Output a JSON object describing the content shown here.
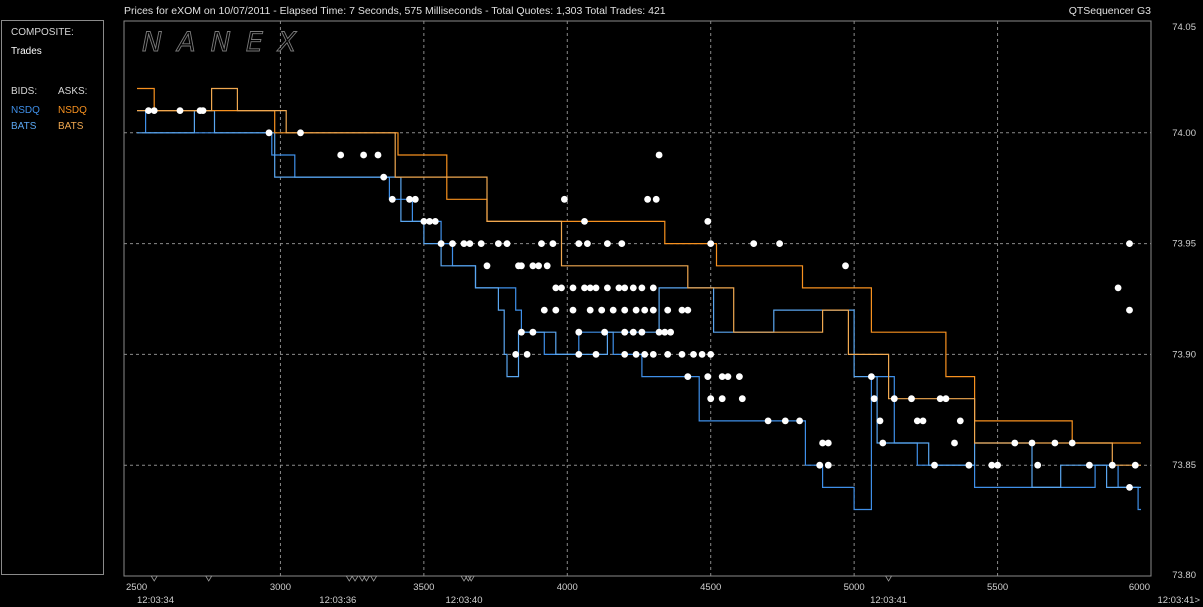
{
  "header": {
    "title": "Prices for  eXOM  on  10/07/2011  -  Elapsed Time: 7 Seconds, 575 Milliseconds  -  Total Quotes: 1,303  Total Trades: 421",
    "app_name": "QTSequencer G3"
  },
  "legend": {
    "composite_label": "COMPOSITE:",
    "trades_label": "Trades",
    "bids_label": "BIDS:",
    "asks_label": "ASKS:",
    "bid_nsdq": "NSDQ",
    "bid_bats": "BATS",
    "ask_nsdq": "NSDQ",
    "ask_bats": "BATS"
  },
  "watermark": "NANEX",
  "colors": {
    "background": "#000000",
    "grid": "#8a8a8a",
    "bid_nsdq": "#3f8fe8",
    "bid_bats": "#5aa6f0",
    "ask_nsdq": "#f7911f",
    "ask_bats": "#f0a850",
    "trades": "#ffffff"
  },
  "chart_data": {
    "type": "line",
    "xlim": [
      2500,
      6000
    ],
    "ylim": [
      73.8,
      74.05
    ],
    "x_ticks": [
      "2500",
      "3000",
      "3500",
      "4000",
      "4500",
      "5000",
      "5500",
      "6000"
    ],
    "y_ticks": [
      "74.05",
      "74.00",
      "73.95",
      "73.90",
      "73.85",
      "73.80"
    ],
    "time_labels": [
      {
        "x": 2500,
        "label": "12:03:34"
      },
      {
        "x": 3200,
        "label": "12:03:36"
      },
      {
        "x": 3640,
        "label": "12:03:40"
      },
      {
        "x": 5120,
        "label": "12:03:41"
      },
      {
        "x": 6000,
        "label": "12:03:41>"
      }
    ],
    "time_markers": [
      2560,
      2750,
      3240,
      3260,
      3285,
      3300,
      3325,
      3640,
      3655,
      3665,
      5120
    ],
    "series": [
      {
        "name": "NSDQ",
        "side": "bid",
        "points": [
          [
            2500,
            74.01
          ],
          [
            2530,
            74.0
          ],
          [
            2960,
            74.0
          ],
          [
            2970,
            73.99
          ],
          [
            3000,
            73.99
          ],
          [
            3050,
            73.98
          ],
          [
            3370,
            73.98
          ],
          [
            3380,
            73.97
          ],
          [
            3440,
            73.97
          ],
          [
            3460,
            73.96
          ],
          [
            3520,
            73.96
          ],
          [
            3560,
            73.95
          ],
          [
            3600,
            73.94
          ],
          [
            3660,
            73.94
          ],
          [
            3680,
            73.93
          ],
          [
            3800,
            73.93
          ],
          [
            3820,
            73.92
          ],
          [
            3840,
            73.91
          ],
          [
            3880,
            73.91
          ],
          [
            3920,
            73.9
          ],
          [
            3980,
            73.9
          ],
          [
            4040,
            73.91
          ],
          [
            4120,
            73.91
          ],
          [
            4160,
            73.9
          ],
          [
            4240,
            73.9
          ],
          [
            4260,
            73.89
          ],
          [
            4450,
            73.89
          ],
          [
            4460,
            73.87
          ],
          [
            4800,
            73.87
          ],
          [
            4830,
            73.85
          ],
          [
            4880,
            73.85
          ],
          [
            4890,
            73.84
          ],
          [
            4990,
            73.84
          ],
          [
            5000,
            73.83
          ],
          [
            5040,
            73.83
          ],
          [
            5060,
            73.89
          ],
          [
            5130,
            73.89
          ],
          [
            5140,
            73.86
          ],
          [
            5200,
            73.86
          ],
          [
            5220,
            73.85
          ],
          [
            5400,
            73.85
          ],
          [
            5420,
            73.84
          ],
          [
            5820,
            73.84
          ],
          [
            5840,
            73.85
          ],
          [
            5900,
            73.85
          ],
          [
            5920,
            73.84
          ],
          [
            5980,
            73.84
          ],
          [
            5990,
            73.83
          ],
          [
            6000,
            73.83
          ]
        ]
      },
      {
        "name": "BATS",
        "side": "bid",
        "points": [
          [
            2500,
            74.0
          ],
          [
            2700,
            74.01
          ],
          [
            2760,
            74.01
          ],
          [
            2770,
            74.0
          ],
          [
            2960,
            74.0
          ],
          [
            2980,
            73.98
          ],
          [
            3380,
            73.98
          ],
          [
            3420,
            73.96
          ],
          [
            3500,
            73.95
          ],
          [
            3560,
            73.94
          ],
          [
            3640,
            73.94
          ],
          [
            3680,
            73.93
          ],
          [
            3760,
            73.92
          ],
          [
            3780,
            73.9
          ],
          [
            3790,
            73.89
          ],
          [
            3830,
            73.91
          ],
          [
            3940,
            73.91
          ],
          [
            3960,
            73.9
          ],
          [
            4120,
            73.9
          ],
          [
            4140,
            73.91
          ],
          [
            4300,
            73.91
          ],
          [
            4320,
            73.93
          ],
          [
            4500,
            73.93
          ],
          [
            4510,
            73.91
          ],
          [
            4700,
            73.91
          ],
          [
            4720,
            73.92
          ],
          [
            4980,
            73.92
          ],
          [
            5000,
            73.89
          ],
          [
            5060,
            73.89
          ],
          [
            5080,
            73.86
          ],
          [
            5240,
            73.86
          ],
          [
            5260,
            73.85
          ],
          [
            5400,
            73.85
          ],
          [
            5420,
            73.86
          ],
          [
            5600,
            73.86
          ],
          [
            5620,
            73.84
          ],
          [
            5700,
            73.84
          ],
          [
            5720,
            73.85
          ],
          [
            5860,
            73.85
          ],
          [
            5880,
            73.84
          ],
          [
            6000,
            73.84
          ]
        ]
      },
      {
        "name": "NSDQ",
        "side": "ask",
        "points": [
          [
            2500,
            74.02
          ],
          [
            2560,
            74.01
          ],
          [
            2960,
            74.01
          ],
          [
            2980,
            74.0
          ],
          [
            3390,
            74.0
          ],
          [
            3410,
            73.99
          ],
          [
            3560,
            73.99
          ],
          [
            3580,
            73.97
          ],
          [
            3700,
            73.97
          ],
          [
            3720,
            73.96
          ],
          [
            4000,
            73.96
          ],
          [
            4320,
            73.96
          ],
          [
            4340,
            73.95
          ],
          [
            4500,
            73.95
          ],
          [
            4520,
            73.94
          ],
          [
            4800,
            73.94
          ],
          [
            4820,
            73.93
          ],
          [
            5040,
            73.93
          ],
          [
            5060,
            73.91
          ],
          [
            5300,
            73.91
          ],
          [
            5320,
            73.89
          ],
          [
            5400,
            73.89
          ],
          [
            5420,
            73.87
          ],
          [
            5740,
            73.87
          ],
          [
            5760,
            73.86
          ],
          [
            6000,
            73.86
          ]
        ]
      },
      {
        "name": "BATS",
        "side": "ask",
        "points": [
          [
            2500,
            74.01
          ],
          [
            2700,
            74.01
          ],
          [
            2760,
            74.02
          ],
          [
            2840,
            74.02
          ],
          [
            2850,
            74.01
          ],
          [
            3000,
            74.01
          ],
          [
            3020,
            74.0
          ],
          [
            3380,
            74.0
          ],
          [
            3400,
            73.98
          ],
          [
            3700,
            73.98
          ],
          [
            3720,
            73.96
          ],
          [
            3960,
            73.96
          ],
          [
            3980,
            73.94
          ],
          [
            4400,
            73.94
          ],
          [
            4420,
            73.93
          ],
          [
            4560,
            73.93
          ],
          [
            4580,
            73.91
          ],
          [
            4880,
            73.91
          ],
          [
            4890,
            73.92
          ],
          [
            4960,
            73.92
          ],
          [
            4980,
            73.9
          ],
          [
            5100,
            73.9
          ],
          [
            5120,
            73.88
          ],
          [
            5400,
            73.88
          ],
          [
            5420,
            73.86
          ],
          [
            5880,
            73.86
          ],
          [
            5900,
            73.85
          ],
          [
            6000,
            73.85
          ]
        ]
      }
    ],
    "trades": [
      [
        2540,
        74.01
      ],
      [
        2560,
        74.01
      ],
      [
        2650,
        74.01
      ],
      [
        2720,
        74.01
      ],
      [
        2730,
        74.01
      ],
      [
        2960,
        74.0
      ],
      [
        3070,
        74.0
      ],
      [
        3210,
        73.99
      ],
      [
        3290,
        73.99
      ],
      [
        3340,
        73.99
      ],
      [
        3360,
        73.98
      ],
      [
        3390,
        73.97
      ],
      [
        3450,
        73.97
      ],
      [
        3470,
        73.97
      ],
      [
        3500,
        73.96
      ],
      [
        3520,
        73.96
      ],
      [
        3540,
        73.96
      ],
      [
        3560,
        73.95
      ],
      [
        3600,
        73.95
      ],
      [
        3640,
        73.95
      ],
      [
        3660,
        73.95
      ],
      [
        3700,
        73.95
      ],
      [
        3720,
        73.94
      ],
      [
        3760,
        73.95
      ],
      [
        3790,
        73.95
      ],
      [
        3830,
        73.94
      ],
      [
        3840,
        73.94
      ],
      [
        3880,
        73.94
      ],
      [
        3900,
        73.94
      ],
      [
        3930,
        73.94
      ],
      [
        3960,
        73.93
      ],
      [
        3980,
        73.93
      ],
      [
        4020,
        73.93
      ],
      [
        4060,
        73.93
      ],
      [
        4080,
        73.93
      ],
      [
        4100,
        73.93
      ],
      [
        4140,
        73.93
      ],
      [
        4180,
        73.93
      ],
      [
        4200,
        73.93
      ],
      [
        4230,
        73.93
      ],
      [
        4260,
        73.93
      ],
      [
        4300,
        73.93
      ],
      [
        3920,
        73.92
      ],
      [
        3960,
        73.92
      ],
      [
        4020,
        73.92
      ],
      [
        4080,
        73.92
      ],
      [
        4120,
        73.92
      ],
      [
        4160,
        73.92
      ],
      [
        4200,
        73.92
      ],
      [
        4240,
        73.92
      ],
      [
        4270,
        73.92
      ],
      [
        4300,
        73.92
      ],
      [
        4350,
        73.92
      ],
      [
        4400,
        73.92
      ],
      [
        4420,
        73.92
      ],
      [
        3840,
        73.91
      ],
      [
        3880,
        73.91
      ],
      [
        4040,
        73.91
      ],
      [
        4130,
        73.91
      ],
      [
        4200,
        73.91
      ],
      [
        4230,
        73.91
      ],
      [
        4260,
        73.91
      ],
      [
        4320,
        73.91
      ],
      [
        4340,
        73.91
      ],
      [
        4360,
        73.91
      ],
      [
        4200,
        73.9
      ],
      [
        4240,
        73.9
      ],
      [
        4270,
        73.9
      ],
      [
        4300,
        73.9
      ],
      [
        4350,
        73.9
      ],
      [
        4400,
        73.9
      ],
      [
        4440,
        73.9
      ],
      [
        4470,
        73.9
      ],
      [
        4500,
        73.9
      ],
      [
        3820,
        73.9
      ],
      [
        3860,
        73.9
      ],
      [
        4040,
        73.9
      ],
      [
        4100,
        73.9
      ],
      [
        4420,
        73.89
      ],
      [
        4490,
        73.89
      ],
      [
        4540,
        73.89
      ],
      [
        4560,
        73.89
      ],
      [
        4600,
        73.89
      ],
      [
        4500,
        73.88
      ],
      [
        4540,
        73.88
      ],
      [
        4610,
        73.88
      ],
      [
        4700,
        73.87
      ],
      [
        4760,
        73.87
      ],
      [
        4810,
        73.87
      ],
      [
        4890,
        73.86
      ],
      [
        4910,
        73.86
      ],
      [
        4880,
        73.85
      ],
      [
        4910,
        73.85
      ],
      [
        5060,
        73.89
      ],
      [
        5070,
        73.88
      ],
      [
        5090,
        73.87
      ],
      [
        5100,
        73.86
      ],
      [
        5140,
        73.88
      ],
      [
        5200,
        73.88
      ],
      [
        5220,
        73.87
      ],
      [
        5240,
        73.87
      ],
      [
        5280,
        73.85
      ],
      [
        5300,
        73.88
      ],
      [
        5320,
        73.88
      ],
      [
        5350,
        73.86
      ],
      [
        5370,
        73.87
      ],
      [
        5400,
        73.85
      ],
      [
        5480,
        73.85
      ],
      [
        5500,
        73.85
      ],
      [
        5560,
        73.86
      ],
      [
        5620,
        73.86
      ],
      [
        5640,
        73.85
      ],
      [
        5700,
        73.86
      ],
      [
        5760,
        73.86
      ],
      [
        5820,
        73.85
      ],
      [
        5900,
        73.85
      ],
      [
        5960,
        73.84
      ],
      [
        5980,
        73.85
      ],
      [
        5960,
        73.95
      ],
      [
        5920,
        73.93
      ],
      [
        5960,
        73.92
      ],
      [
        4970,
        73.94
      ],
      [
        4740,
        73.95
      ],
      [
        4650,
        73.95
      ],
      [
        4490,
        73.96
      ],
      [
        4500,
        73.95
      ],
      [
        4280,
        73.97
      ],
      [
        4310,
        73.97
      ],
      [
        4320,
        73.99
      ],
      [
        4140,
        73.95
      ],
      [
        4060,
        73.96
      ],
      [
        3990,
        73.97
      ],
      [
        3950,
        73.95
      ],
      [
        3910,
        73.95
      ],
      [
        4040,
        73.95
      ],
      [
        4070,
        73.95
      ],
      [
        4190,
        73.95
      ]
    ]
  }
}
